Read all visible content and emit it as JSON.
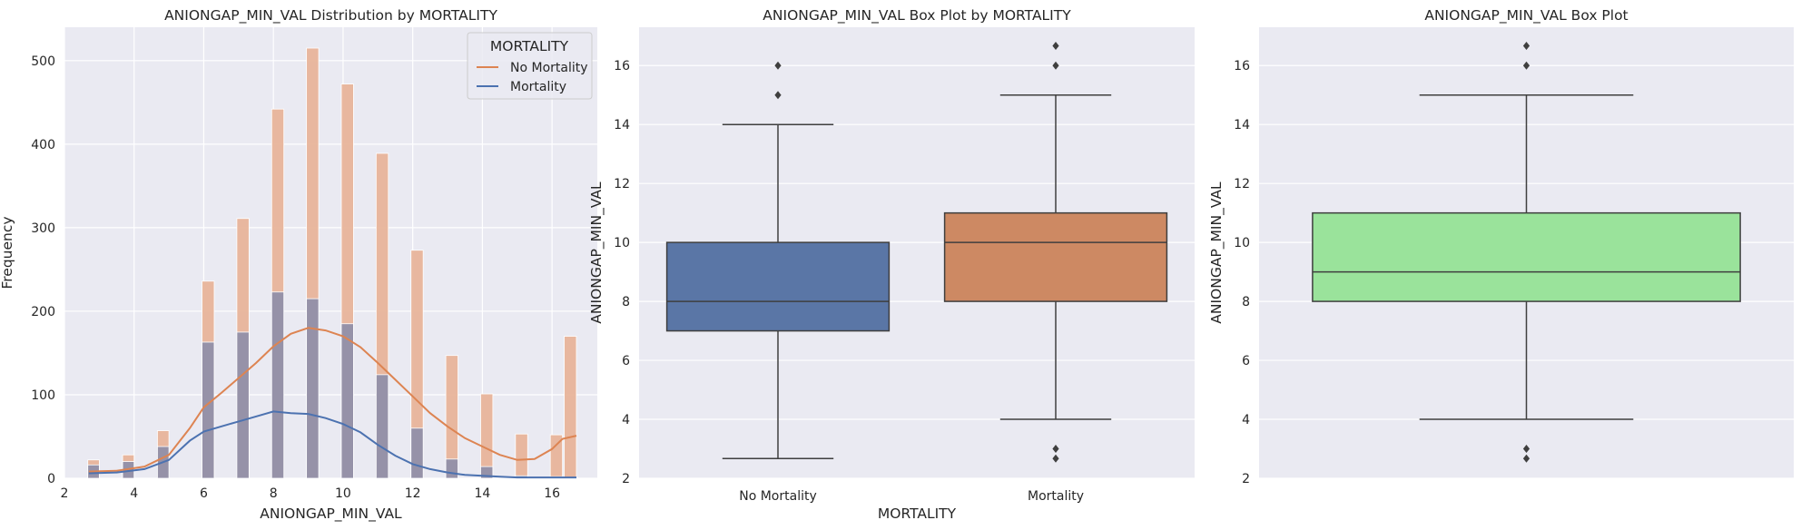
{
  "chart_data": [
    {
      "type": "histogram",
      "title": "ANIONGAP_MIN_VAL Distribution by MORTALITY",
      "xlabel": "ANIONGAP_MIN_VAL",
      "ylabel": "Frequency",
      "xlim": [
        2,
        17.3
      ],
      "ylim": [
        0,
        540
      ],
      "xticks": [
        2,
        4,
        6,
        8,
        10,
        12,
        14,
        16
      ],
      "yticks": [
        0,
        100,
        200,
        300,
        400,
        500
      ],
      "grid": true,
      "legend": {
        "title": "MORTALITY",
        "position": "top-right",
        "entries": [
          {
            "label": "No Mortality",
            "color": "#dd8452"
          },
          {
            "label": "Mortality",
            "color": "#4c72b0"
          }
        ]
      },
      "bar_bins": [
        [
          2.67,
          3.0
        ],
        [
          3.67,
          4.0
        ],
        [
          4.67,
          5.0
        ],
        [
          5.95,
          6.3
        ],
        [
          6.95,
          7.3
        ],
        [
          7.95,
          8.3
        ],
        [
          8.95,
          9.3
        ],
        [
          9.95,
          10.3
        ],
        [
          10.95,
          11.3
        ],
        [
          11.95,
          12.3
        ],
        [
          12.95,
          13.3
        ],
        [
          13.95,
          14.3
        ],
        [
          14.95,
          15.3
        ],
        [
          15.95,
          16.3
        ],
        [
          16.35,
          16.7
        ]
      ],
      "series": [
        {
          "name": "No Mortality",
          "color": "#dd8452",
          "values": [
            22,
            28,
            57,
            236,
            311,
            442,
            515,
            472,
            389,
            273,
            147,
            101,
            53,
            52,
            170
          ],
          "kde_x": [
            2.7,
            3.5,
            4.3,
            5.0,
            5.6,
            6.0,
            6.5,
            7.0,
            7.5,
            8.0,
            8.5,
            9.0,
            9.5,
            10.0,
            10.5,
            11.0,
            11.5,
            12.0,
            12.5,
            13.0,
            13.5,
            14.0,
            14.5,
            15.0,
            15.5,
            16.0,
            16.3,
            16.7
          ],
          "kde_y": [
            8,
            9,
            14,
            28,
            60,
            85,
            102,
            120,
            138,
            158,
            173,
            180,
            177,
            170,
            157,
            138,
            118,
            98,
            78,
            62,
            48,
            38,
            28,
            22,
            23,
            35,
            47,
            51
          ]
        },
        {
          "name": "Mortality",
          "color": "#4c72b0",
          "values": [
            16,
            20,
            38,
            163,
            175,
            223,
            215,
            185,
            124,
            60,
            23,
            14,
            3,
            2,
            1
          ],
          "kde_x": [
            2.7,
            3.5,
            4.3,
            5.0,
            5.6,
            6.0,
            6.5,
            7.0,
            7.5,
            8.0,
            8.5,
            9.0,
            9.5,
            10.0,
            10.5,
            11.0,
            11.5,
            12.0,
            12.5,
            13.0,
            13.5,
            14.0,
            14.5,
            15.0,
            15.5,
            16.0,
            16.3,
            16.7
          ],
          "kde_y": [
            6,
            7,
            11,
            22,
            45,
            56,
            62,
            68,
            74,
            80,
            78,
            77,
            72,
            65,
            55,
            40,
            27,
            17,
            11,
            7,
            4,
            3,
            2,
            1,
            1,
            1,
            1,
            1
          ]
        }
      ]
    },
    {
      "type": "box",
      "title": "ANIONGAP_MIN_VAL Box Plot by MORTALITY",
      "xlabel": "MORTALITY",
      "ylabel": "ANIONGAP_MIN_VAL",
      "ylim": [
        2,
        17.3
      ],
      "yticks": [
        2,
        4,
        6,
        8,
        10,
        12,
        14,
        16
      ],
      "categories": [
        "No Mortality",
        "Mortality"
      ],
      "grid": true,
      "boxes": [
        {
          "name": "No Mortality",
          "color": "#5a76a6",
          "whisker_low": 2.67,
          "q1": 7,
          "median": 8,
          "q3": 10,
          "whisker_high": 14,
          "outliers": [
            15,
            16
          ]
        },
        {
          "name": "Mortality",
          "color": "#cd8963",
          "whisker_low": 4,
          "q1": 8,
          "median": 10,
          "q3": 11,
          "whisker_high": 15,
          "outliers": [
            16,
            16.67,
            3,
            2.67
          ]
        }
      ]
    },
    {
      "type": "box",
      "title": "ANIONGAP_MIN_VAL Box Plot",
      "xlabel": "",
      "ylabel": "ANIONGAP_MIN_VAL",
      "ylim": [
        2,
        17.3
      ],
      "yticks": [
        2,
        4,
        6,
        8,
        10,
        12,
        14,
        16
      ],
      "grid": true,
      "boxes": [
        {
          "name": "",
          "color": "#9ae39b",
          "whisker_low": 4,
          "q1": 8,
          "median": 9,
          "q3": 11,
          "whisker_high": 15,
          "outliers": [
            16,
            16.67,
            3,
            2.67
          ]
        }
      ]
    }
  ]
}
